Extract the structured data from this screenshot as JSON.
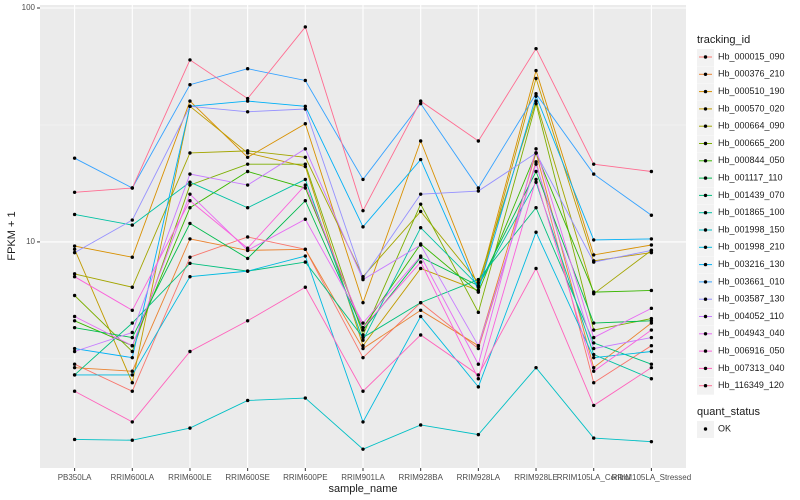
{
  "chart_data": {
    "type": "line",
    "log_y": true,
    "grid": true,
    "x_label": "sample_name",
    "y_label": "FPKM + 1",
    "legend_title": "tracking_id",
    "categories": [
      "PB350LA",
      "RRIM600LA",
      "RRIM600LE",
      "RRIM600SE",
      "RRIM600PE",
      "RRIM901LA",
      "RRIM928BA",
      "RRIM928LA",
      "RRIM928LE",
      "RRIM105LA_Control",
      "RRIM105LA_Stressed"
    ],
    "ylim": [
      1.08,
      103
    ],
    "yticks": [
      10,
      100
    ],
    "shape_legend": {
      "title": "quant_status",
      "labels": [
        "OK"
      ]
    },
    "series": [
      {
        "name": "Hb_000015_090",
        "color": "#F8766D",
        "values": [
          3.0,
          2.3,
          8.6,
          10.5,
          9.3,
          3.2,
          5.5,
          3.5,
          22,
          2.5,
          3.6
        ]
      },
      {
        "name": "Hb_000376_210",
        "color": "#EA8331",
        "values": [
          2.9,
          2.8,
          10.3,
          9.2,
          9.3,
          3.5,
          5.1,
          3.6,
          24,
          2.9,
          4.5
        ]
      },
      {
        "name": "Hb_000510_190",
        "color": "#D89000",
        "values": [
          9.6,
          8.6,
          40,
          23,
          32,
          5.5,
          27,
          6.4,
          54,
          8.8,
          9.7
        ]
      },
      {
        "name": "Hb_000570_020",
        "color": "#C09B00",
        "values": [
          9.3,
          2.5,
          38,
          24,
          21,
          3.6,
          7.7,
          6.2,
          50,
          8.3,
          9.0
        ]
      },
      {
        "name": "Hb_000664_090",
        "color": "#A3A500",
        "values": [
          7.3,
          6.4,
          24,
          24.5,
          23,
          7.1,
          13.5,
          6.7,
          40,
          6.0,
          9.2
        ]
      },
      {
        "name": "Hb_000665_200",
        "color": "#7CAE00",
        "values": [
          5.9,
          3.4,
          17.5,
          21.5,
          21.5,
          4.0,
          14.5,
          5.0,
          39,
          4.2,
          4.7
        ]
      },
      {
        "name": "Hb_000844_050",
        "color": "#39B600",
        "values": [
          4.6,
          3.6,
          14,
          20,
          17,
          4.3,
          9.8,
          6.1,
          24,
          6.1,
          6.2
        ]
      },
      {
        "name": "Hb_001117_110",
        "color": "#00BB4E",
        "values": [
          4.3,
          3.9,
          12,
          8.5,
          15,
          4.2,
          8.6,
          6.5,
          20,
          4.5,
          4.6
        ]
      },
      {
        "name": "Hb_001439_070",
        "color": "#00BF7D",
        "values": [
          2.7,
          4.5,
          8.1,
          7.5,
          8.2,
          3.9,
          5.5,
          6.9,
          14,
          3.7,
          3.0
        ]
      },
      {
        "name": "Hb_001865_100",
        "color": "#00C1A3",
        "values": [
          13.1,
          11.8,
          18,
          14,
          18.5,
          3.8,
          11.5,
          6.5,
          18,
          3.3,
          2.6
        ]
      },
      {
        "name": "Hb_001998_150",
        "color": "#00BFC4",
        "values": [
          1.43,
          1.42,
          1.6,
          2.1,
          2.15,
          1.3,
          1.65,
          1.5,
          2.9,
          1.45,
          1.4
        ]
      },
      {
        "name": "Hb_001998_210",
        "color": "#00BAE0",
        "values": [
          2.7,
          2.7,
          7.1,
          7.5,
          8.7,
          1.7,
          4.8,
          2.4,
          11,
          3.2,
          3.4
        ]
      },
      {
        "name": "Hb_003216_130",
        "color": "#00B0F6",
        "values": [
          3.5,
          3.2,
          38,
          40,
          38,
          11.6,
          22.5,
          6.2,
          42,
          10.2,
          10.3
        ]
      },
      {
        "name": "Hb_003661_010",
        "color": "#35A2FF",
        "values": [
          22.8,
          17,
          47,
          55,
          49,
          18.5,
          39,
          17,
          43,
          19.5,
          13
        ]
      },
      {
        "name": "Hb_003587_130",
        "color": "#9590FF",
        "values": [
          9.0,
          12.4,
          38,
          36,
          37,
          7.0,
          16,
          16.5,
          24,
          8.2,
          9.2
        ]
      },
      {
        "name": "Hb_004052_110",
        "color": "#C77CFF",
        "values": [
          3.4,
          4.1,
          19.5,
          17.5,
          25,
          6.9,
          9.7,
          3.6,
          21.5,
          3.5,
          3.9
        ]
      },
      {
        "name": "Hb_004943_040",
        "color": "#E76BF3",
        "values": [
          4.8,
          3.6,
          16,
          9.2,
          12.5,
          4.5,
          8.7,
          3.0,
          25,
          3.9,
          5.2
        ]
      },
      {
        "name": "Hb_006916_050",
        "color": "#FA62DB",
        "values": [
          7.1,
          5.1,
          15,
          9.4,
          17.5,
          4.3,
          8.2,
          2.6,
          18.5,
          2.8,
          4.2
        ]
      },
      {
        "name": "Hb_007313_040",
        "color": "#FF62BC",
        "values": [
          2.3,
          1.7,
          3.4,
          4.6,
          6.4,
          2.3,
          4.0,
          2.7,
          7.7,
          2.0,
          2.9
        ]
      },
      {
        "name": "Hb_116349_120",
        "color": "#FF6C91",
        "values": [
          16.3,
          17,
          60,
          41,
          83,
          13.6,
          40,
          27,
          67,
          21.5,
          20
        ]
      }
    ]
  }
}
